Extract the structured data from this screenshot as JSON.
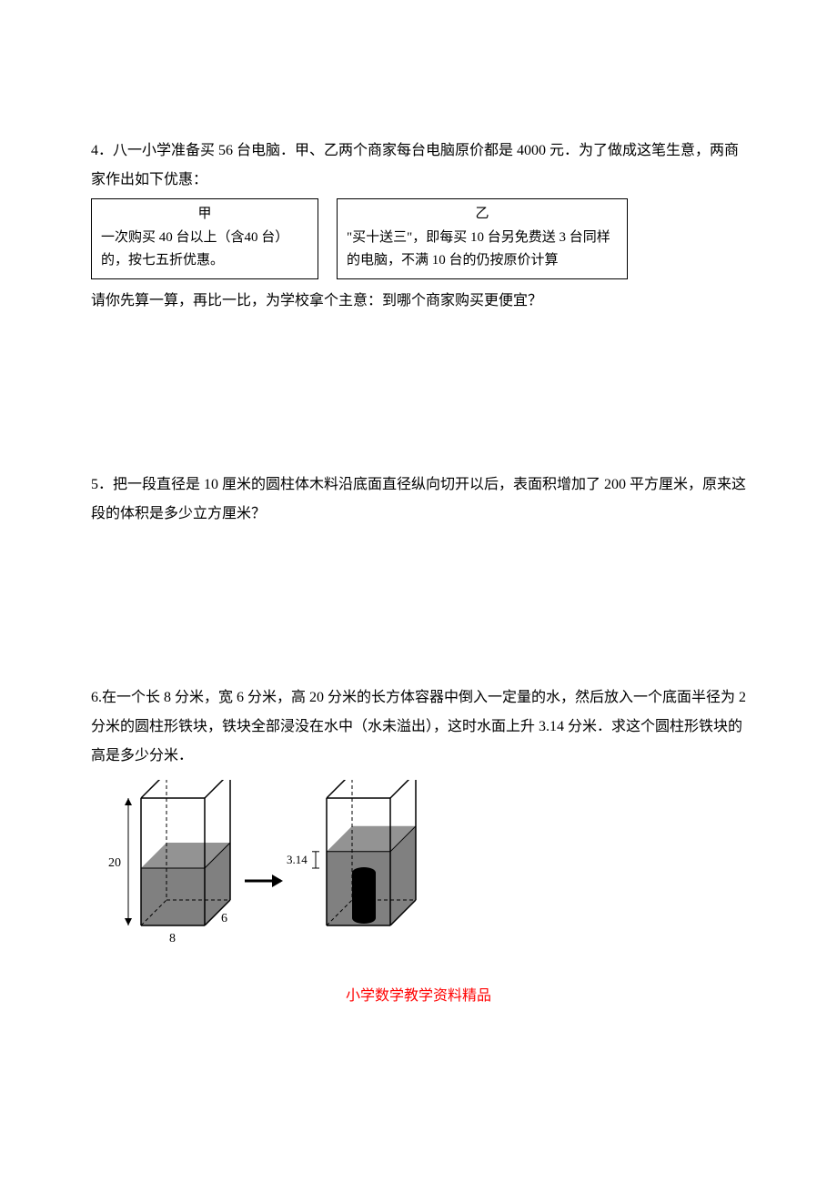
{
  "problem4": {
    "intro": "4．八一小学准备买 56 台电脑．甲、乙两个商家每台电脑原价都是 4000 元．为了做成这笔生意，两商家作出如下优惠：",
    "boxJia": {
      "title": "甲",
      "body": "一次购买 40 台以上（含40 台）的，按七五折优惠。"
    },
    "boxYi": {
      "title": "乙",
      "body": "\"买十送三\"，即每买 10 台另免费送 3 台同样的电脑，不满 10 台的仍按原价计算"
    },
    "after": "请你先算一算，再比一比，为学校拿个主意：到哪个商家购买更便宜？"
  },
  "problem5": {
    "text": "5．把一段直径是 10 厘米的圆柱体木料沿底面直径纵向切开以后，表面积增加了 200 平方厘米，原来这段的体积是多少立方厘米？"
  },
  "problem6": {
    "text": "6.在一个长 8 分米，宽 6 分米，高 20 分米的长方体容器中倒入一定量的水，然后放入一个底面半径为 2 分米的圆柱形铁块，铁块全部浸没在水中（水未溢出），这时水面上升 3.14 分米．求这个圆柱形铁块的高是多少分米．"
  },
  "diagram": {
    "container1": {
      "totalHeight_label": "20",
      "length_label": "8",
      "width_label": "6",
      "waterFraction": 0.45,
      "waterColor": "#808080",
      "lineColor": "#000000"
    },
    "arrowColor": "#000000",
    "container2": {
      "riseLabel": "3.14",
      "waterFraction": 0.58,
      "waterColor": "#808080",
      "cylinderColor": "#000000",
      "lineColor": "#000000"
    }
  },
  "footer": "小学数学教学资料精品",
  "colors": {
    "text": "#000000",
    "footer": "#ff0000",
    "background": "#ffffff"
  }
}
